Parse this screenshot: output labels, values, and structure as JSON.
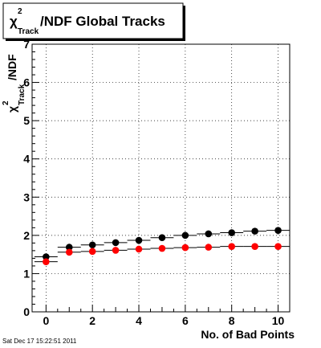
{
  "chart_data": {
    "type": "scatter",
    "title_symbol": "χ",
    "title_superscript": "2",
    "title_subscript": "Track",
    "title_rest": "/NDF  Global Tracks",
    "ylabel_symbol": "χ",
    "ylabel_superscript": "2",
    "ylabel_subscript": "Track",
    "ylabel_rest": "/NDF",
    "xlabel": "No. of Bad Points",
    "xlim": [
      -0.6,
      10.5
    ],
    "ylim": [
      0,
      7
    ],
    "xticks": [
      0,
      2,
      4,
      6,
      8,
      10
    ],
    "yticks": [
      0,
      1,
      2,
      3,
      4,
      5,
      6,
      7
    ],
    "grid": true,
    "timestamp": "Sat Dec 17 15:22:51 2011",
    "x": [
      0,
      1,
      2,
      3,
      4,
      5,
      6,
      7,
      8,
      9,
      10
    ],
    "series": [
      {
        "color": "#000000",
        "values": [
          1.44,
          1.69,
          1.75,
          1.81,
          1.87,
          1.94,
          2.0,
          2.04,
          2.07,
          2.11,
          2.13
        ]
      },
      {
        "color": "#ff0000",
        "values": [
          1.31,
          1.56,
          1.58,
          1.61,
          1.64,
          1.66,
          1.68,
          1.69,
          1.71,
          1.71,
          1.71
        ]
      }
    ]
  }
}
